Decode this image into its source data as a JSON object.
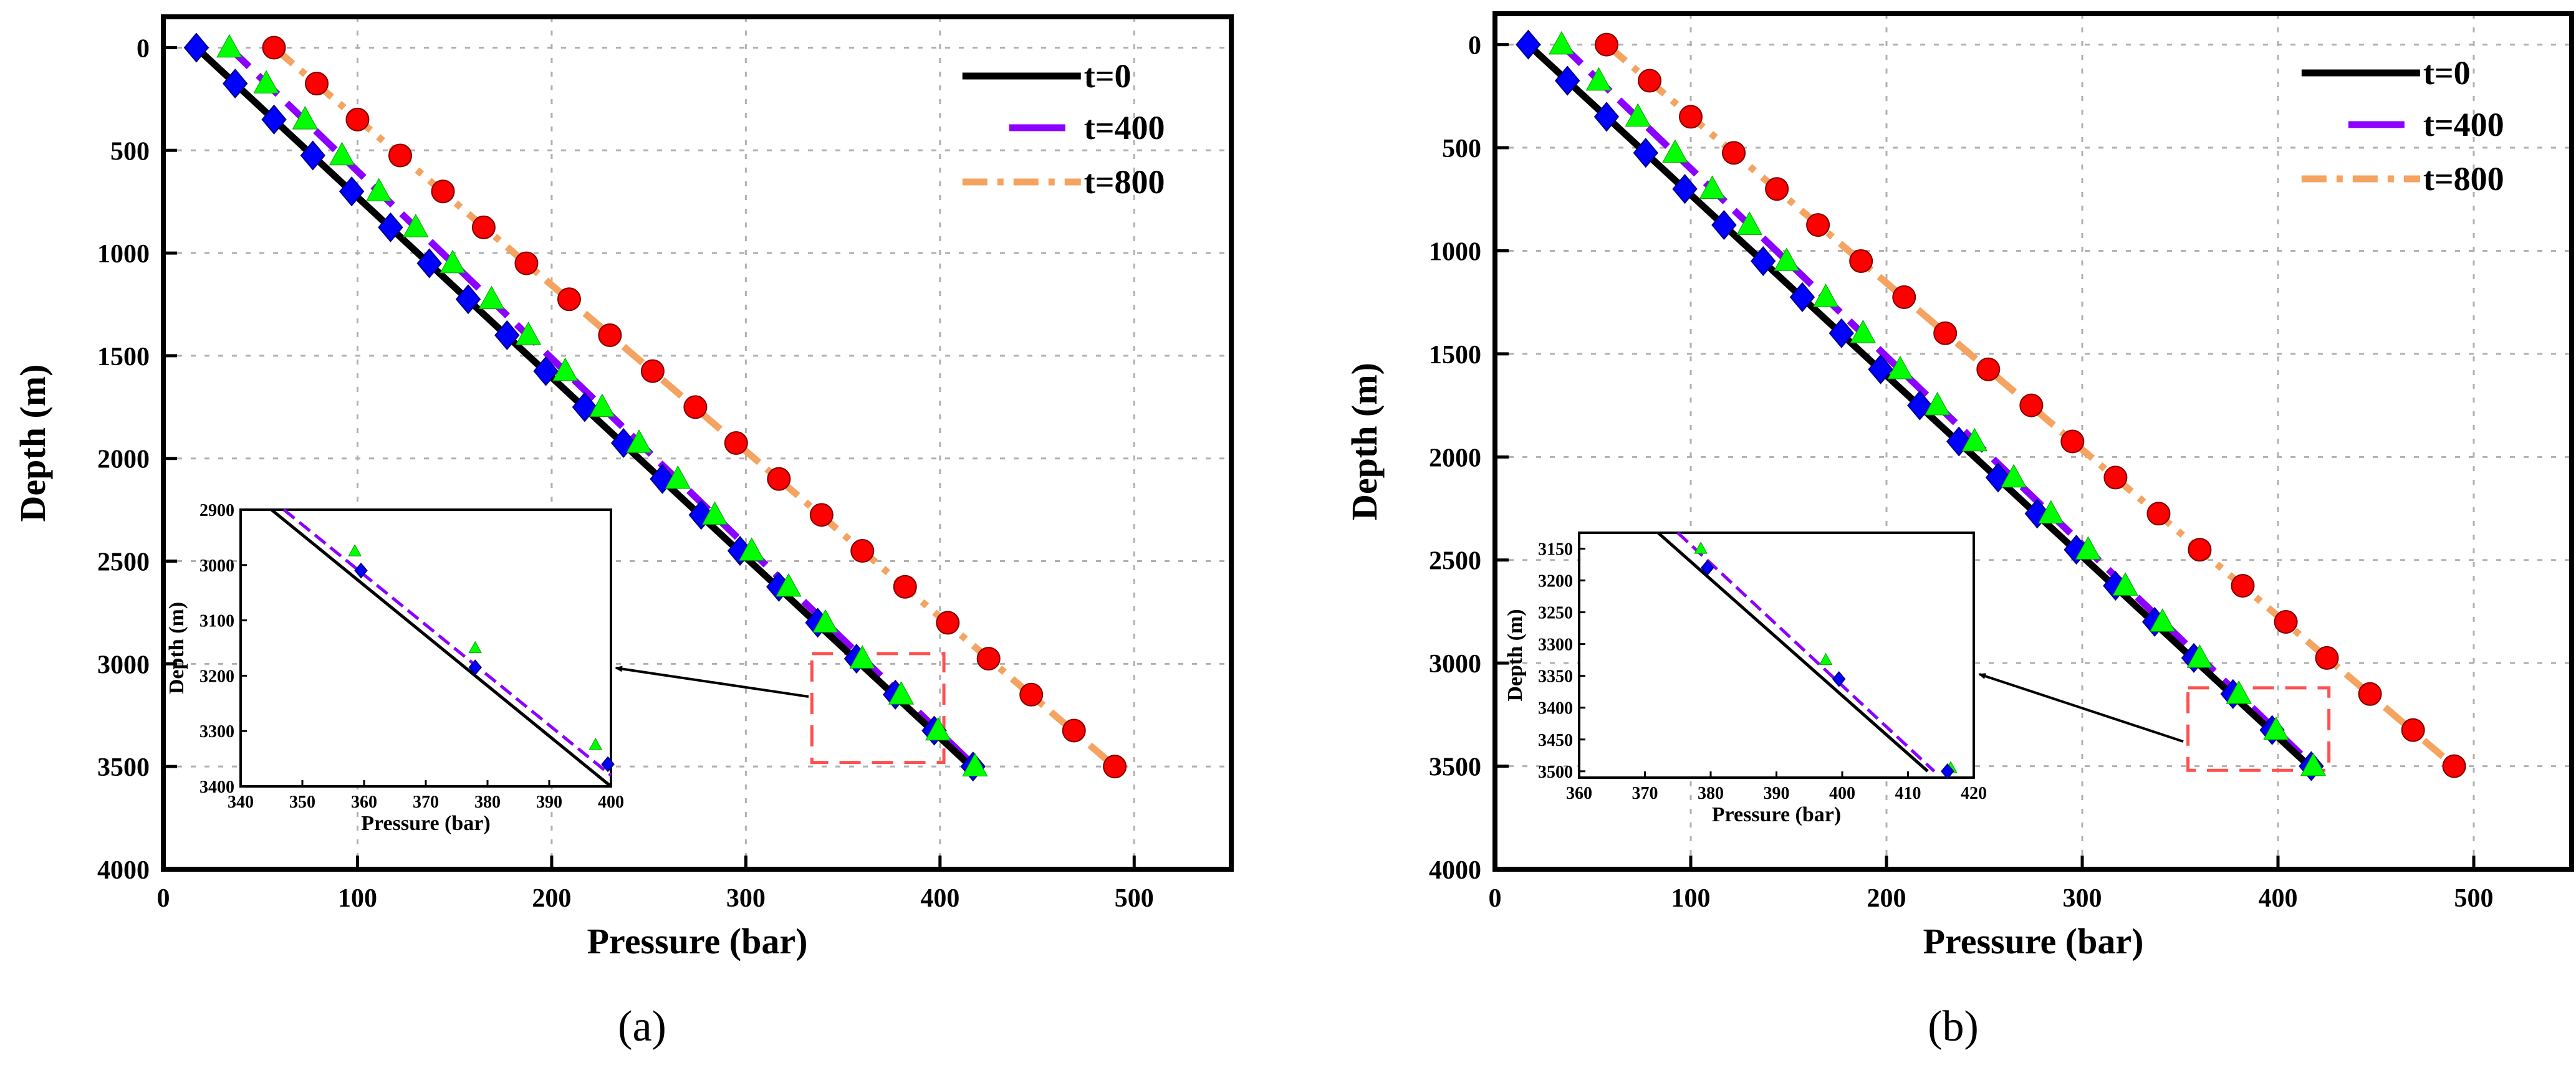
{
  "chart_data": [
    {
      "type": "line",
      "panel": "a",
      "caption": "(a)",
      "xlabel": "Pressure (bar)",
      "ylabel": "Depth (m)",
      "xlim": [
        0,
        550
      ],
      "ylim": [
        0,
        4000
      ],
      "y_inverted": true,
      "xticks": [
        0,
        100,
        200,
        300,
        400,
        500
      ],
      "yticks": [
        0,
        500,
        1000,
        1500,
        2000,
        2500,
        3000,
        3500,
        4000
      ],
      "grid": true,
      "legend": {
        "position": "top-right",
        "entries": [
          "t=0",
          "t=400",
          "t=800"
        ]
      },
      "series": [
        {
          "name": "t=0",
          "style": "solid",
          "color": "#000000",
          "x": [
            17,
            416
          ],
          "y": [
            0,
            3500
          ]
        },
        {
          "name": "t=400",
          "style": "dashed",
          "color": "#8B00FF",
          "x": [
            34,
            418
          ],
          "y": [
            0,
            3500
          ]
        },
        {
          "name": "t=800",
          "style": "dashdot",
          "color": "#F4A460",
          "x": [
            57,
            490
          ],
          "y": [
            0,
            3500
          ]
        }
      ],
      "markers": [
        {
          "shape": "diamond",
          "color": "#0000FF",
          "x": [
            17,
            37,
            57,
            77,
            97,
            117,
            137,
            157,
            177,
            197,
            217,
            237,
            257,
            277,
            297,
            317,
            337,
            357,
            377,
            397,
            417
          ],
          "y": [
            0,
            175,
            350,
            525,
            700,
            875,
            1050,
            1225,
            1400,
            1575,
            1750,
            1925,
            2100,
            2275,
            2450,
            2625,
            2800,
            2975,
            3150,
            3325,
            3500
          ]
        },
        {
          "shape": "triangle",
          "color": "#00FF00",
          "x": [
            34,
            53,
            73,
            92,
            111,
            130,
            149,
            169,
            188,
            207,
            226,
            245,
            265,
            284,
            303,
            322,
            341,
            360,
            380,
            399,
            418
          ],
          "y": [
            0,
            175,
            350,
            525,
            700,
            875,
            1050,
            1225,
            1400,
            1575,
            1750,
            1925,
            2100,
            2275,
            2450,
            2625,
            2800,
            2975,
            3150,
            3325,
            3500
          ]
        },
        {
          "shape": "circle",
          "color": "#FF0000",
          "x": [
            57,
            79,
            100,
            122,
            144,
            165,
            187,
            209,
            230,
            252,
            274,
            295,
            317,
            339,
            360,
            382,
            404,
            425,
            447,
            469,
            490
          ],
          "y": [
            0,
            175,
            350,
            525,
            700,
            875,
            1050,
            1225,
            1400,
            1575,
            1750,
            1925,
            2100,
            2275,
            2450,
            2625,
            2800,
            2975,
            3150,
            3325,
            3500
          ]
        }
      ],
      "zoom_box": {
        "x": [
          334,
          402
        ],
        "y": [
          2950,
          3480
        ]
      },
      "inset": {
        "xlabel": "Pressure (bar)",
        "ylabel": "Depth (m)",
        "xlim": [
          340,
          400
        ],
        "ylim": [
          2900,
          3400
        ],
        "xticks": [
          340,
          350,
          360,
          370,
          380,
          390,
          400
        ],
        "yticks": [
          2900,
          3000,
          3100,
          3200,
          3300,
          3400
        ],
        "lines": [
          {
            "name": "t=0",
            "x": [
              345,
              400
            ],
            "y": [
              2900,
              3400
            ]
          },
          {
            "name": "t=400",
            "x": [
              347,
              400
            ],
            "y": [
              2900,
              3380
            ]
          }
        ],
        "markers": [
          {
            "shape": "triangle",
            "color": "#00FF00",
            "x": [
              358.5,
              378,
              397.5
            ],
            "y": [
              2975,
              3150,
              3325
            ]
          },
          {
            "shape": "diamond",
            "color": "#0000FF",
            "x": [
              359.5,
              378,
              399.5
            ],
            "y": [
              3010,
              3185,
              3360
            ]
          }
        ]
      }
    },
    {
      "type": "line",
      "panel": "b",
      "caption": "(b)",
      "xlabel": "Pressure (bar)",
      "ylabel": "Depth (m)",
      "xlim": [
        0,
        550
      ],
      "ylim": [
        0,
        4000
      ],
      "y_inverted": true,
      "xticks": [
        0,
        100,
        200,
        300,
        400,
        500
      ],
      "yticks": [
        0,
        500,
        1000,
        1500,
        2000,
        2500,
        3000,
        3500,
        4000
      ],
      "grid": true,
      "legend": {
        "position": "top-right",
        "entries": [
          "t=0",
          "t=400",
          "t=800"
        ]
      },
      "series": [
        {
          "name": "t=0",
          "style": "solid",
          "color": "#000000",
          "x": [
            17,
            416
          ],
          "y": [
            0,
            3500
          ]
        },
        {
          "name": "t=400",
          "style": "dashed",
          "color": "#8B00FF",
          "x": [
            34,
            418
          ],
          "y": [
            0,
            3500
          ]
        },
        {
          "name": "t=800",
          "style": "dashdot",
          "color": "#F4A460",
          "x": [
            57,
            490
          ],
          "y": [
            0,
            3500
          ]
        }
      ],
      "markers": [
        {
          "shape": "diamond",
          "color": "#0000FF",
          "x": [
            17,
            37,
            57,
            77,
            97,
            117,
            137,
            157,
            177,
            197,
            217,
            237,
            257,
            277,
            297,
            317,
            337,
            357,
            377,
            397,
            417
          ],
          "y": [
            0,
            175,
            350,
            525,
            700,
            875,
            1050,
            1225,
            1400,
            1575,
            1750,
            1925,
            2100,
            2275,
            2450,
            2625,
            2800,
            2975,
            3150,
            3325,
            3500
          ]
        },
        {
          "shape": "triangle",
          "color": "#00FF00",
          "x": [
            34,
            53,
            73,
            92,
            111,
            130,
            149,
            169,
            188,
            207,
            226,
            245,
            265,
            284,
            303,
            322,
            341,
            360,
            380,
            399,
            418
          ],
          "y": [
            0,
            175,
            350,
            525,
            700,
            875,
            1050,
            1225,
            1400,
            1575,
            1750,
            1925,
            2100,
            2275,
            2450,
            2625,
            2800,
            2975,
            3150,
            3325,
            3500
          ]
        },
        {
          "shape": "circle",
          "color": "#FF0000",
          "x": [
            57,
            79,
            100,
            122,
            144,
            165,
            187,
            209,
            230,
            252,
            274,
            295,
            317,
            339,
            360,
            382,
            404,
            425,
            447,
            469,
            490
          ],
          "y": [
            0,
            175,
            350,
            525,
            700,
            875,
            1050,
            1225,
            1400,
            1575,
            1750,
            1925,
            2100,
            2275,
            2450,
            2625,
            2800,
            2975,
            3150,
            3325,
            3500
          ]
        }
      ],
      "zoom_box": {
        "x": [
          354,
          426
        ],
        "y": [
          3120,
          3520
        ]
      },
      "inset": {
        "xlabel": "Pressure (bar)",
        "ylabel": "Depth (m)",
        "xlim": [
          360,
          420
        ],
        "ylim": [
          3125,
          3510
        ],
        "xticks": [
          360,
          370,
          380,
          390,
          400,
          410,
          420
        ],
        "yticks": [
          3150,
          3200,
          3250,
          3300,
          3350,
          3400,
          3450,
          3500
        ],
        "lines": [
          {
            "name": "t=0",
            "x": [
              372,
              413
            ],
            "y": [
              3125,
              3500
            ]
          },
          {
            "name": "t=400",
            "x": [
              375,
              414
            ],
            "y": [
              3125,
              3500
            ]
          }
        ],
        "markers": [
          {
            "shape": "triangle",
            "color": "#00FF00",
            "x": [
              378.5,
              397.5,
              416.5
            ],
            "y": [
              3150,
              3325,
              3495
            ]
          },
          {
            "shape": "diamond",
            "color": "#0000FF",
            "x": [
              379.5,
              399.5,
              416
            ],
            "y": [
              3180,
              3355,
              3500
            ]
          }
        ]
      }
    }
  ]
}
